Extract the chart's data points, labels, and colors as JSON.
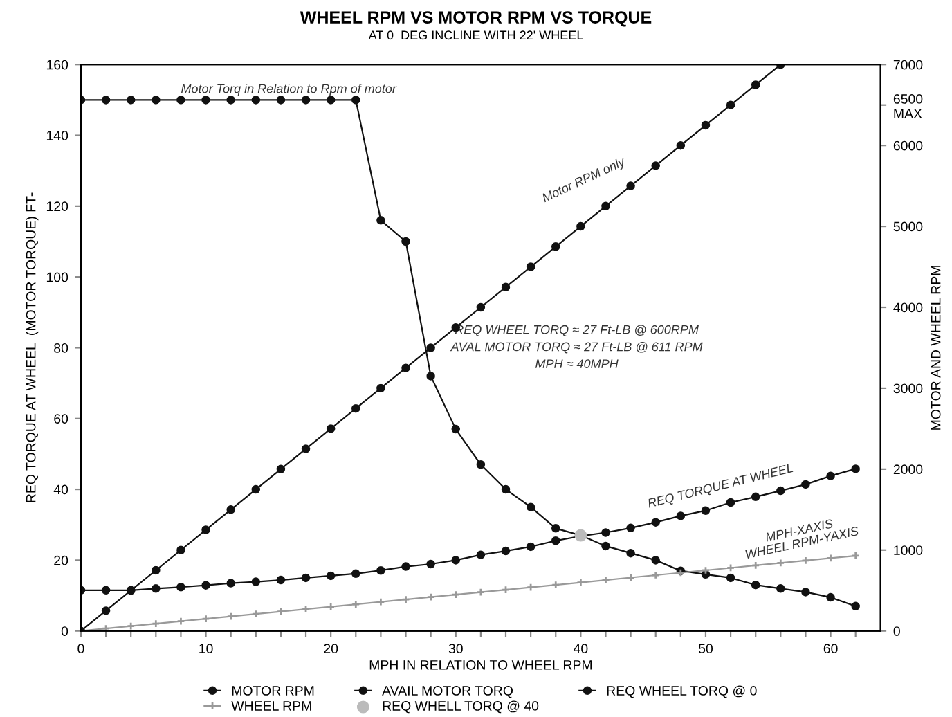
{
  "chart_data": {
    "type": "line",
    "title": "WHEEL RPM VS MOTOR RPM VS TORQUE",
    "subtitle": "AT 0  DEG INCLINE WITH 22' WHEEL",
    "xlabel": "MPH IN RELATION TO WHEEL RPM",
    "ylabel": "REQ TORQUE AT WHEEL  (MOTOR TORQUE) FT-",
    "y2label": "MOTOR AND WHEEL RPM",
    "xlim": [
      0,
      64
    ],
    "ylim": [
      0,
      160
    ],
    "y2lim": [
      0,
      7000
    ],
    "xticks": [
      0,
      {
        "value": 2,
        "label": null
      },
      {
        "value": 4,
        "label": null
      },
      {
        "value": 6,
        "label": null
      },
      {
        "value": 8,
        "label": null
      },
      10,
      {
        "value": 12,
        "label": null
      },
      {
        "value": 14,
        "label": null
      },
      {
        "value": 16,
        "label": null
      },
      {
        "value": 18,
        "label": null
      },
      20,
      {
        "value": 22,
        "label": null
      },
      {
        "value": 24,
        "label": null
      },
      {
        "value": 26,
        "label": null
      },
      {
        "value": 28,
        "label": null
      },
      30,
      {
        "value": 32,
        "label": null
      },
      {
        "value": 34,
        "label": null
      },
      {
        "value": 36,
        "label": null
      },
      {
        "value": 38,
        "label": null
      },
      40,
      {
        "value": 42,
        "label": null
      },
      {
        "value": 44,
        "label": null
      },
      {
        "value": 46,
        "label": null
      },
      {
        "value": 48,
        "label": null
      },
      50,
      {
        "value": 52,
        "label": null
      },
      {
        "value": 54,
        "label": null
      },
      {
        "value": 56,
        "label": null
      },
      {
        "value": 58,
        "label": null
      },
      60,
      {
        "value": 62,
        "label": null
      }
    ],
    "yticks": [
      0,
      20,
      40,
      60,
      80,
      100,
      120,
      140,
      160
    ],
    "y2ticks": [
      0,
      1000,
      2000,
      3000,
      4000,
      5000,
      6000,
      {
        "value": 6500,
        "label": "6500\nMAX"
      },
      7000
    ],
    "grid": false,
    "legend": "bottom",
    "marker": "circle",
    "series": [
      {
        "name": "MOTOR RPM",
        "color": "#111111",
        "axis": "y2",
        "x": [
          0,
          2,
          4,
          6,
          8,
          10,
          12,
          14,
          16,
          18,
          20,
          22,
          24,
          26,
          28,
          30,
          32,
          34,
          36,
          38,
          40,
          42,
          44,
          46,
          48,
          50,
          52,
          54,
          56
        ],
        "values": [
          0,
          250,
          500,
          750,
          1000,
          1250,
          1500,
          1750,
          2000,
          2250,
          2500,
          2750,
          3000,
          3250,
          3500,
          3750,
          4000,
          4250,
          4500,
          4750,
          5000,
          5250,
          5500,
          5750,
          6000,
          6250,
          6500,
          6750,
          7000
        ]
      },
      {
        "name": "AVAIL MOTOR TORQ",
        "color": "#111111",
        "x": [
          0,
          2,
          4,
          6,
          8,
          10,
          12,
          14,
          16,
          18,
          20,
          22,
          24,
          26,
          28,
          30,
          32,
          34,
          36,
          38,
          40,
          42,
          44,
          46,
          48,
          50,
          52,
          54,
          56,
          58,
          60,
          62
        ],
        "values": [
          150,
          150,
          150,
          150,
          150,
          150,
          150,
          150,
          150,
          150,
          150,
          150,
          116,
          110,
          72,
          57,
          47,
          40,
          35,
          29,
          27,
          24,
          22,
          20,
          17,
          16,
          15,
          13,
          12,
          11,
          9.5,
          7
        ]
      },
      {
        "name": "REQ WHEEL TORQ @ 0",
        "color": "#111111",
        "x": [
          0,
          2,
          4,
          6,
          8,
          10,
          12,
          14,
          16,
          18,
          20,
          22,
          24,
          26,
          28,
          30,
          32,
          34,
          36,
          38,
          40,
          42,
          44,
          46,
          48,
          50,
          52,
          54,
          56,
          58,
          60,
          62
        ],
        "values": [
          11.5,
          11.5,
          11.5,
          12,
          12.4,
          12.9,
          13.5,
          13.9,
          14.4,
          15,
          15.6,
          16.2,
          17.1,
          18.2,
          18.9,
          20,
          21.5,
          22.6,
          23.8,
          25.5,
          26.8,
          27.8,
          29.1,
          30.7,
          32.5,
          34,
          36.3,
          37.9,
          39.6,
          41.4,
          43.8,
          45.8
        ]
      },
      {
        "name": "WHEEL RPM",
        "color": "#999999",
        "axis": "y2",
        "marker": "cross",
        "x": [
          0,
          2,
          4,
          6,
          8,
          10,
          12,
          14,
          16,
          18,
          20,
          22,
          24,
          26,
          28,
          30,
          32,
          34,
          36,
          38,
          40,
          42,
          44,
          46,
          48,
          50,
          52,
          54,
          56,
          58,
          60,
          62
        ],
        "values": [
          0,
          30,
          60,
          90,
          120,
          150,
          180,
          210,
          240,
          270,
          300,
          330,
          360,
          390,
          420,
          450,
          480,
          510,
          540,
          570,
          600,
          630,
          660,
          690,
          720,
          750,
          780,
          810,
          840,
          870,
          900,
          930
        ]
      },
      {
        "name": "REQ WHELL TORQ @ 40",
        "color": "#bbbbbb",
        "type": "scatter",
        "x": [
          40
        ],
        "values": [
          27
        ]
      }
    ],
    "annotations": [
      {
        "text": "Motor Torq in Relation to Rpm of motor",
        "x": 8,
        "y": 152
      },
      "Motor RPM only",
      "REQ WHEEL TORQ ≈ 27 Ft-LB @ 600RPM\nAVAL MOTOR TORQ ≈ 27 Ft-LB @ 611 RPM\nMPH ≈ 40MPH",
      "REQ TORQUE AT WHEEL",
      "MPH-XAXIS\nWHEEL RPM-YAXIS"
    ]
  }
}
